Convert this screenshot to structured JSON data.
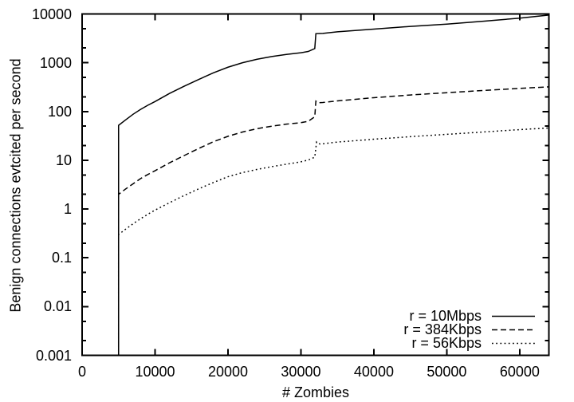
{
  "figure": {
    "background": "#ffffff",
    "foreground": "#000000"
  },
  "chart_data": {
    "type": "line",
    "title": "",
    "xlabel": "# Zombies",
    "ylabel": "Benign connections evtcited per second",
    "grid": "off",
    "legend": {
      "position": "bottom-right-inside"
    },
    "x_axis": {
      "scale": "linear",
      "min": 0,
      "max": 64000,
      "ticks": [
        {
          "label": "0",
          "value": 0
        },
        {
          "label": "10000",
          "value": 10000
        },
        {
          "label": "20000",
          "value": 20000
        },
        {
          "label": "30000",
          "value": 30000
        },
        {
          "label": "40000",
          "value": 40000
        },
        {
          "label": "50000",
          "value": 50000
        },
        {
          "label": "60000",
          "value": 60000
        }
      ]
    },
    "y_axis": {
      "scale": "log",
      "min": 0.001,
      "max": 10000,
      "ticks": [
        {
          "label": "10000",
          "value": 10000
        },
        {
          "label": "1000",
          "value": 1000
        },
        {
          "label": "100",
          "value": 100
        },
        {
          "label": "10",
          "value": 10
        },
        {
          "label": "1",
          "value": 1
        },
        {
          "label": "0.1",
          "value": 0.1
        },
        {
          "label": "0.01",
          "value": 0.01
        },
        {
          "label": "0.001",
          "value": 0.001
        }
      ],
      "minor_tick_multipliers": [
        2,
        5
      ]
    },
    "series": [
      {
        "name": "r = 10Mbps",
        "style": "solid",
        "color": "#000000",
        "points": [
          [
            5000,
            0.001
          ],
          [
            5000,
            52
          ],
          [
            6000,
            68
          ],
          [
            7000,
            88
          ],
          [
            8000,
            110
          ],
          [
            9000,
            134
          ],
          [
            10000,
            160
          ],
          [
            12000,
            235
          ],
          [
            14000,
            330
          ],
          [
            16000,
            455
          ],
          [
            18000,
            620
          ],
          [
            20000,
            810
          ],
          [
            22000,
            1000
          ],
          [
            24000,
            1180
          ],
          [
            26000,
            1340
          ],
          [
            28000,
            1480
          ],
          [
            30000,
            1600
          ],
          [
            31000,
            1700
          ],
          [
            31900,
            1950
          ],
          [
            32050,
            3950
          ],
          [
            33000,
            4000
          ],
          [
            35000,
            4300
          ],
          [
            40000,
            4900
          ],
          [
            45000,
            5550
          ],
          [
            50000,
            6200
          ],
          [
            55000,
            7100
          ],
          [
            60000,
            8200
          ],
          [
            64000,
            9500
          ]
        ]
      },
      {
        "name": "r = 384Kbps",
        "style": "dashed",
        "color": "#000000",
        "points": [
          [
            5000,
            0.001
          ],
          [
            5000,
            2.0
          ],
          [
            6000,
            2.6
          ],
          [
            7000,
            3.3
          ],
          [
            8000,
            4.2
          ],
          [
            9000,
            5.1
          ],
          [
            10000,
            6.1
          ],
          [
            12000,
            8.9
          ],
          [
            14000,
            12.5
          ],
          [
            16000,
            17.5
          ],
          [
            18000,
            24
          ],
          [
            20000,
            31
          ],
          [
            22000,
            38
          ],
          [
            24000,
            44.5
          ],
          [
            26000,
            50
          ],
          [
            28000,
            55
          ],
          [
            30000,
            59
          ],
          [
            31000,
            63
          ],
          [
            31900,
            78
          ],
          [
            32050,
            163
          ],
          [
            32400,
            151
          ],
          [
            33000,
            153
          ],
          [
            35000,
            165
          ],
          [
            40000,
            192
          ],
          [
            45000,
            218
          ],
          [
            50000,
            243
          ],
          [
            55000,
            270
          ],
          [
            60000,
            298
          ],
          [
            64000,
            320
          ]
        ]
      },
      {
        "name": "r = 56Kbps",
        "style": "dotted",
        "color": "#000000",
        "points": [
          [
            5000,
            0.001
          ],
          [
            5000,
            0.3
          ],
          [
            6000,
            0.39
          ],
          [
            7000,
            0.5
          ],
          [
            8000,
            0.63
          ],
          [
            9000,
            0.78
          ],
          [
            10000,
            0.95
          ],
          [
            12000,
            1.35
          ],
          [
            14000,
            1.9
          ],
          [
            16000,
            2.6
          ],
          [
            18000,
            3.5
          ],
          [
            20000,
            4.6
          ],
          [
            22000,
            5.6
          ],
          [
            24000,
            6.5
          ],
          [
            26000,
            7.4
          ],
          [
            28000,
            8.3
          ],
          [
            30000,
            9.3
          ],
          [
            31000,
            10.1
          ],
          [
            31900,
            11.6
          ],
          [
            32150,
            23.8
          ],
          [
            32600,
            21.6
          ],
          [
            33000,
            21.8
          ],
          [
            35000,
            23.6
          ],
          [
            40000,
            27
          ],
          [
            45000,
            30.5
          ],
          [
            50000,
            34
          ],
          [
            55000,
            38
          ],
          [
            60000,
            42.5
          ],
          [
            64000,
            46
          ]
        ]
      }
    ]
  }
}
